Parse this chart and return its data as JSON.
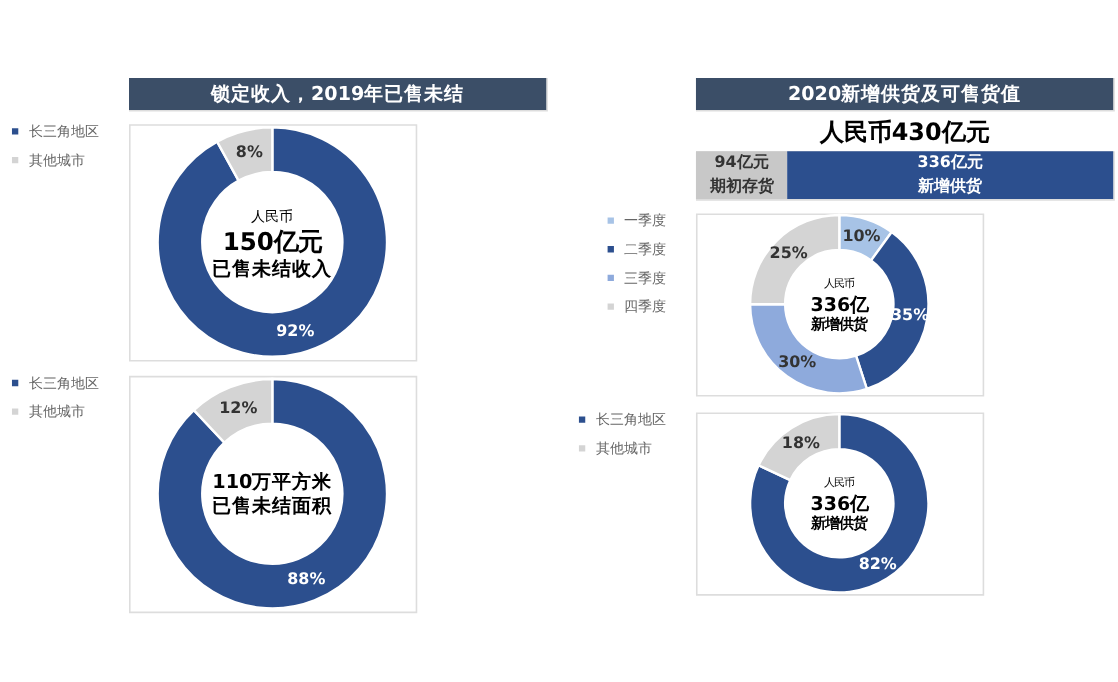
{
  "chart_data": [
    {
      "type": "donut",
      "title": "锁定收入，2019年已售未结",
      "categories": [
        "长三角地区",
        "其他城市"
      ],
      "values": [
        92,
        8
      ],
      "colors": [
        "#2c4f8e",
        "#d4d4d4"
      ],
      "value_labels": [
        "92%",
        "8%"
      ],
      "annotations": [
        "人民币",
        "150亿元",
        "已售未结收入"
      ],
      "legend": "left"
    },
    {
      "type": "donut",
      "categories": [
        "长三角地区",
        "其他城市"
      ],
      "values": [
        88,
        12
      ],
      "colors": [
        "#2c4f8e",
        "#d4d4d4"
      ],
      "value_labels": [
        "88%",
        "12%"
      ],
      "annotations": [
        "110万平方米",
        "已售未结面积"
      ],
      "legend": "left"
    },
    {
      "type": "bar",
      "orientation": "horizontal",
      "stacked": true,
      "title": "2020新增供货及可售货值",
      "subtitle": "人民币430亿元",
      "categories": [
        null
      ],
      "series": [
        {
          "name": "期初存货",
          "color": "#c8c8c8",
          "values": [
            94
          ],
          "value_labels": [
            "94亿元"
          ]
        },
        {
          "name": "新增供货",
          "color": "#2c4f8e",
          "values": [
            336
          ],
          "value_labels": [
            "336亿元"
          ]
        }
      ]
    },
    {
      "type": "donut",
      "categories": [
        "一季度",
        "二季度",
        "三季度",
        "四季度"
      ],
      "values": [
        10,
        35,
        30,
        25
      ],
      "colors": [
        "#a7c3e6",
        "#2c4f8e",
        "#8eaadc",
        "#d4d4d4"
      ],
      "value_labels": [
        "10%",
        "35%",
        "30%",
        "25%"
      ],
      "annotations": [
        "人民币",
        "336亿",
        "新增供货"
      ],
      "legend": "left"
    },
    {
      "type": "donut",
      "categories": [
        "长三角地区",
        "其他城市"
      ],
      "values": [
        82,
        18
      ],
      "colors": [
        "#2c4f8e",
        "#d4d4d4"
      ],
      "value_labels": [
        "82%",
        "18%"
      ],
      "annotations": [
        "人民币",
        "336亿",
        "新增供货"
      ],
      "legend": "left"
    }
  ]
}
